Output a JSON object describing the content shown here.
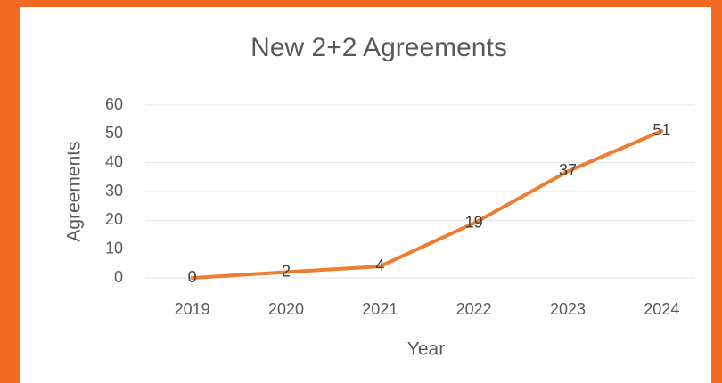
{
  "chart_data": {
    "type": "line",
    "title": "New 2+2 Agreements",
    "x_label": "Year",
    "y_label": "Agreements",
    "categories": [
      "2019",
      "2020",
      "2021",
      "2022",
      "2023",
      "2024"
    ],
    "series": [
      {
        "name": "Agreements",
        "color": "#ed7d31",
        "values": [
          0,
          2,
          4,
          19,
          37,
          51
        ]
      }
    ],
    "ylim": [
      0,
      60
    ],
    "yticks": [
      0,
      10,
      20,
      30,
      40,
      50,
      60
    ],
    "grid": true,
    "data_labels": true
  }
}
